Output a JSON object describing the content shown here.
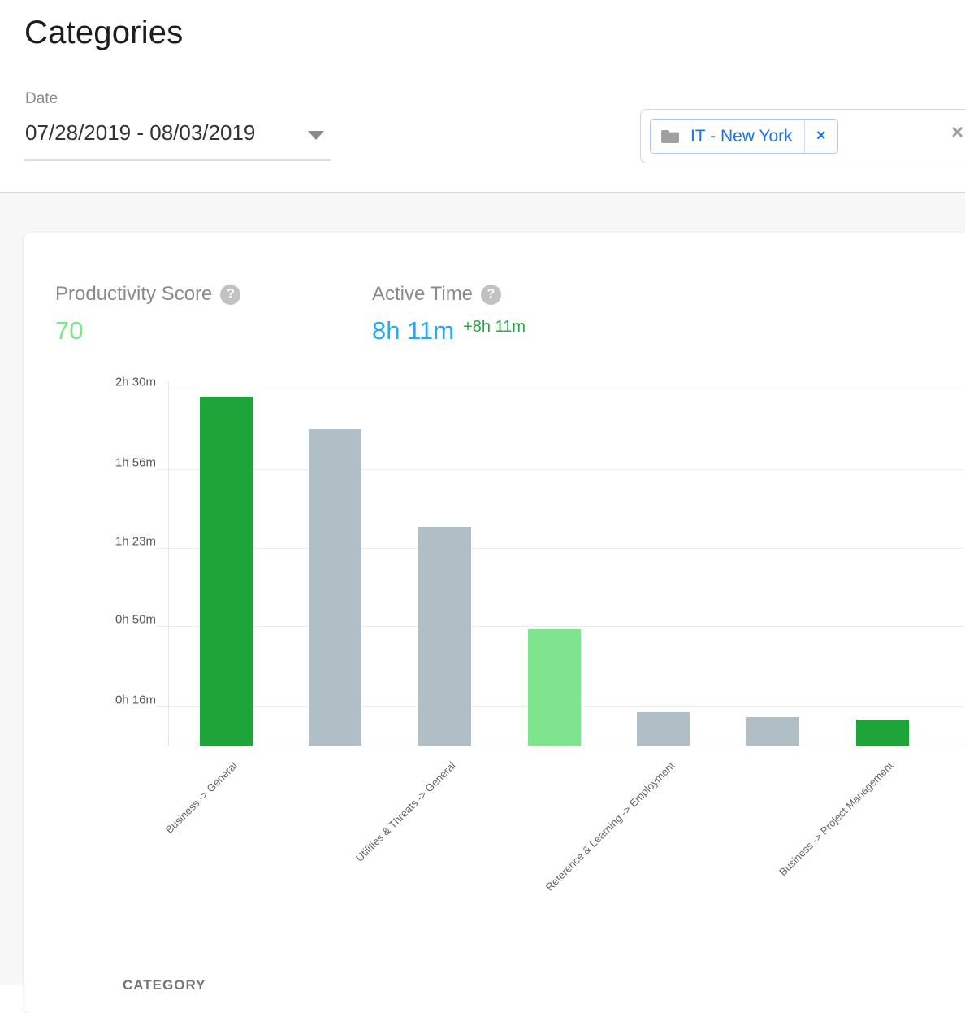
{
  "page": {
    "title": "Categories"
  },
  "filters": {
    "date": {
      "label": "Date",
      "value": "07/28/2019 - 08/03/2019"
    },
    "group": {
      "chip_label": "IT - New York",
      "chip_remove_glyph": "×",
      "clear_all_glyph": "×"
    }
  },
  "metrics": {
    "help_glyph": "?",
    "productivity_score": {
      "label": "Productivity Score",
      "value": "70"
    },
    "active_time": {
      "label": "Active Time",
      "value": "8h 11m",
      "delta": "+8h 11m"
    }
  },
  "chart_data": {
    "type": "bar",
    "title": "",
    "xlabel": "",
    "ylabel": "",
    "grid": true,
    "x_labels_rotation_deg": -45,
    "ylim_minutes": [
      0,
      153
    ],
    "yticks": [
      {
        "label": "0h 16m",
        "minutes": 16
      },
      {
        "label": "0h 50m",
        "minutes": 50
      },
      {
        "label": "1h 23m",
        "minutes": 83
      },
      {
        "label": "1h 56m",
        "minutes": 116
      },
      {
        "label": "2h 30m",
        "minutes": 150
      }
    ],
    "categories": [
      "Business -> General",
      "",
      "Utilities & Threats -> General",
      "",
      "Reference & Learning -> Employment",
      "",
      "Business -> Project Management"
    ],
    "values_minutes": [
      147,
      133,
      92,
      49,
      14,
      12,
      11
    ],
    "value_labels": [
      "2h 27m",
      "2h 13m",
      "1h 32m",
      "0h 49m",
      "0h 14m",
      "0h 12m",
      "0h 11m"
    ],
    "bar_colors": [
      "#1ea53a",
      "#b0bec5",
      "#b0bec5",
      "#7ee48e",
      "#b0bec5",
      "#b0bec5",
      "#1ea53a"
    ]
  },
  "table": {
    "first_column_header": "CATEGORY"
  },
  "colors": {
    "productive_green": "#1ea53a",
    "passive_green": "#7ee48e",
    "neutral_gray_bar": "#b0bec5",
    "active_time_blue": "#29a9f5",
    "delta_green": "#28a840",
    "chip_blue": "#1a73e8",
    "background_gray": "#f7f7f7"
  }
}
